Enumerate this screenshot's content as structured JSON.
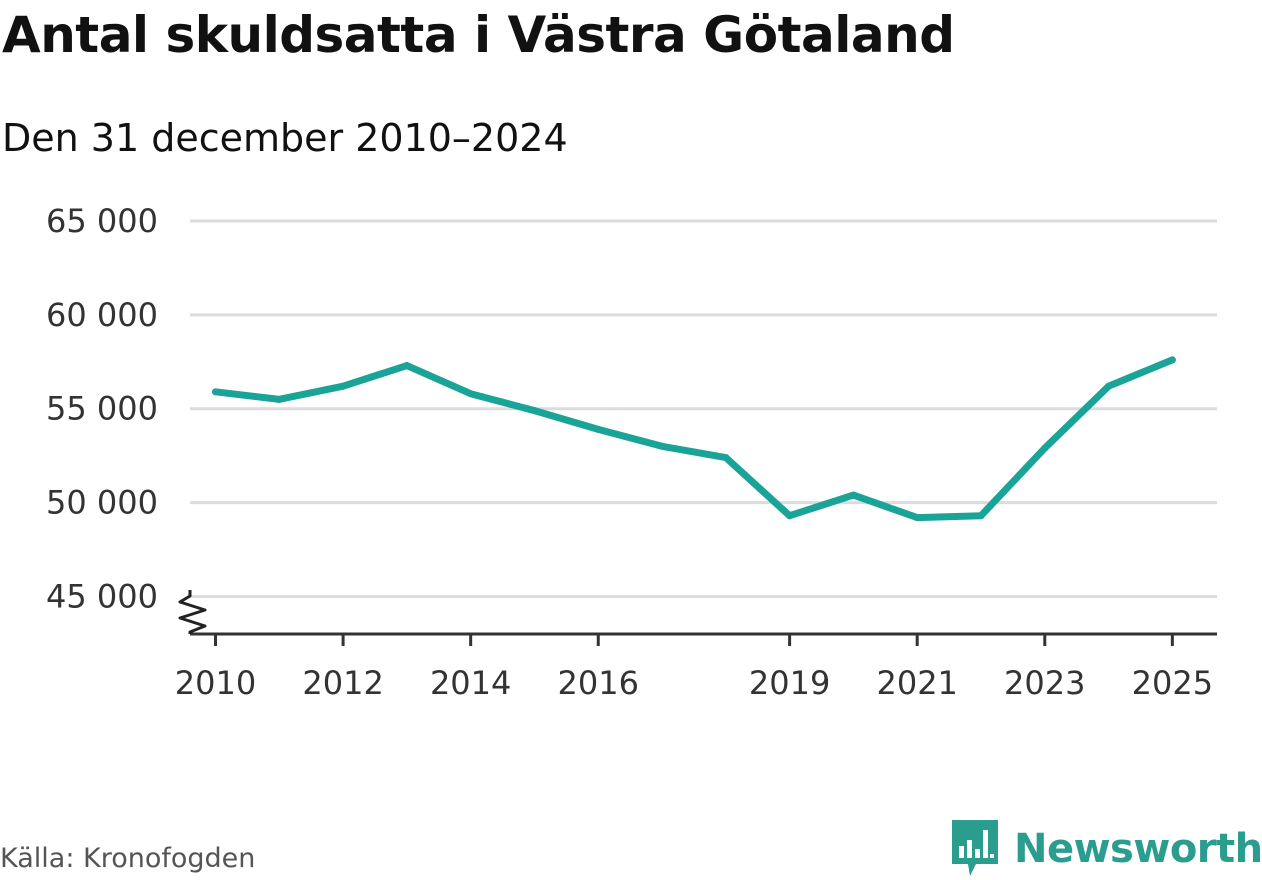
{
  "title": "Antal skuldsatta i Västra Götaland",
  "subtitle": "Den 31 december 2010–2024",
  "source": "Källa: Kronofogden",
  "brand": {
    "name": "Newsworthy",
    "icon": "bar-chart-speech-icon",
    "color": "#2a9d8f"
  },
  "chart_data": {
    "type": "line",
    "title": "Antal skuldsatta i Västra Götaland",
    "subtitle": "Den 31 december 2010–2024",
    "xlabel": "",
    "ylabel": "",
    "x": [
      2010,
      2011,
      2012,
      2013,
      2014,
      2015,
      2016,
      2017,
      2018,
      2019,
      2020,
      2021,
      2022,
      2023,
      2024,
      2025
    ],
    "series": [
      {
        "name": "Antal skuldsatta",
        "color": "#1aa397",
        "values": [
          55900,
          55500,
          56200,
          57300,
          55800,
          54900,
          53900,
          53000,
          52400,
          49300,
          50400,
          49200,
          49300,
          52900,
          56200,
          57600
        ]
      }
    ],
    "ylim": [
      43000,
      65000
    ],
    "xlim": [
      2009.6,
      2025.7
    ],
    "y_ticks": [
      45000,
      50000,
      55000,
      60000,
      65000
    ],
    "y_tick_labels": [
      "45 000",
      "50 000",
      "55 000",
      "60 000",
      "65 000"
    ],
    "x_ticks": [
      2010,
      2012,
      2014,
      2016,
      2019,
      2021,
      2023,
      2025
    ],
    "x_tick_labels": [
      "2010",
      "2012",
      "2014",
      "2016",
      "2019",
      "2021",
      "2023",
      "2025"
    ],
    "grid": true,
    "axis_break": true,
    "legend": "none"
  }
}
